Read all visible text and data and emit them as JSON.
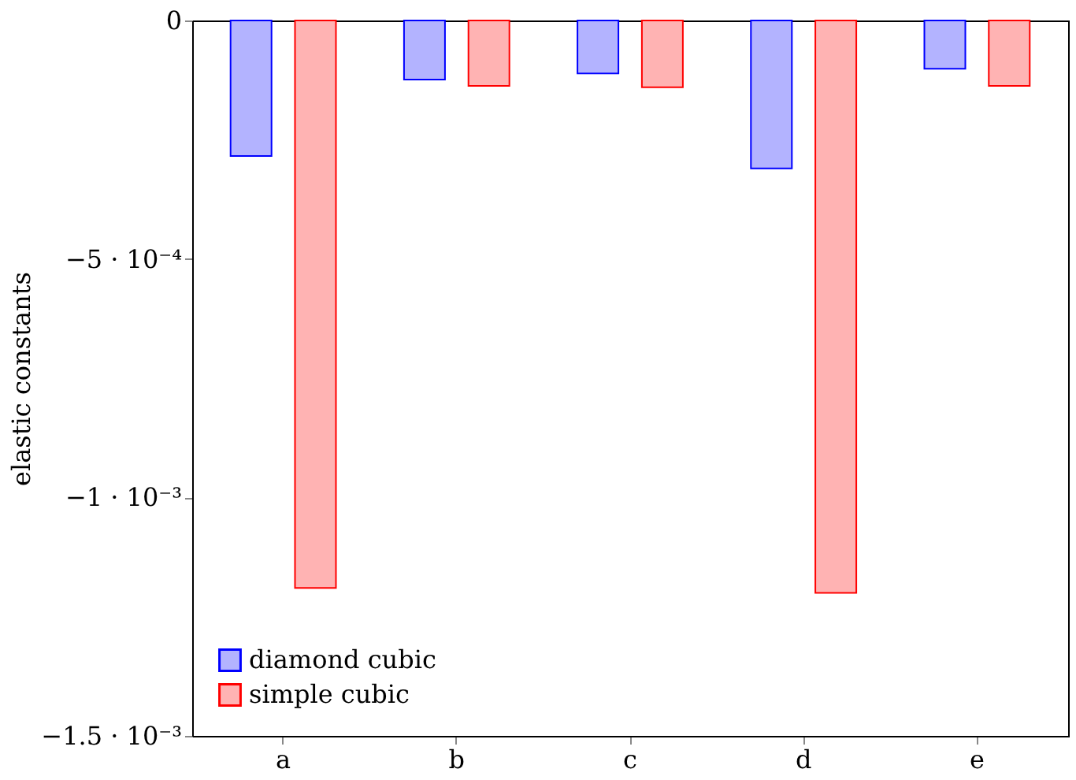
{
  "chart_data": {
    "type": "bar",
    "ylabel": "elastic constants",
    "categories": [
      "a",
      "b",
      "c",
      "d",
      "e"
    ],
    "series": [
      {
        "name": "diamond cubic",
        "color": "#b3b3ff",
        "values": [
          -0.000284,
          -0.000124,
          -0.000111,
          -0.00031,
          -0.000101
        ]
      },
      {
        "name": "simple cubic",
        "color": "#ffb3b3",
        "values": [
          -0.00119,
          -0.000137,
          -0.00014,
          -0.0012,
          -0.000137
        ]
      }
    ],
    "ylim": [
      -0.0015,
      0
    ],
    "yticks": [
      {
        "value": -0.0015,
        "label": "−1.5 · 10⁻³"
      },
      {
        "value": -0.001,
        "label": "−1 · 10⁻³"
      },
      {
        "value": -0.0005,
        "label": "−5 · 10⁻⁴"
      },
      0
    ],
    "grid": false,
    "legend": "bottom left"
  }
}
